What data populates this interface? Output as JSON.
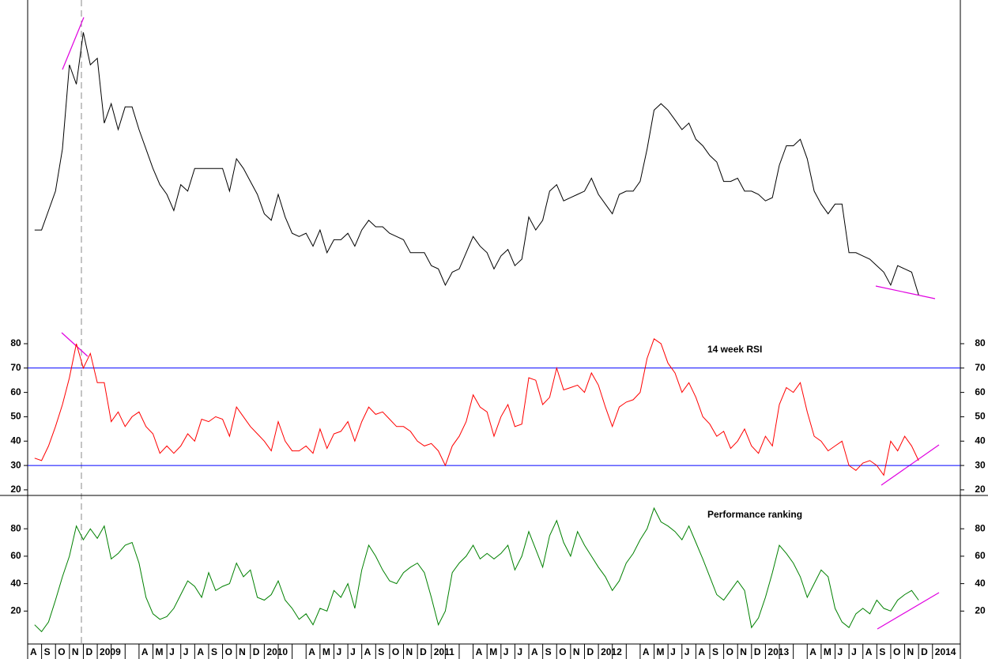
{
  "chart_data": [
    {
      "type": "line",
      "ylim": [
        0,
        100
      ],
      "series": [
        {
          "color": "#000000",
          "values": [
            29,
            29,
            35,
            41,
            54,
            80,
            74,
            90,
            80,
            82,
            62,
            68,
            60,
            67,
            67,
            60,
            54,
            48,
            43,
            40,
            35,
            43,
            41,
            48,
            48,
            48,
            48,
            48,
            41,
            51,
            48,
            44,
            40,
            34,
            32,
            40,
            33,
            28,
            27,
            28,
            24,
            29,
            22,
            26,
            26,
            28,
            24,
            29,
            32,
            30,
            30,
            28,
            27,
            26,
            22,
            22,
            22,
            18,
            17,
            12,
            16,
            17,
            22,
            27,
            24,
            22,
            17,
            21,
            23,
            18,
            20,
            33,
            29,
            32,
            41,
            43,
            38,
            39,
            40,
            41,
            45,
            40,
            37,
            34,
            40,
            41,
            41,
            44,
            54,
            66,
            68,
            66,
            63,
            60,
            62,
            57,
            55,
            52,
            50,
            44,
            44,
            45,
            41,
            41,
            40,
            38,
            39,
            49,
            55,
            55,
            57,
            51,
            41,
            37,
            34,
            37,
            37,
            22,
            22,
            21,
            20,
            18,
            16,
            12,
            18,
            17,
            16,
            9
          ]
        }
      ]
    },
    {
      "type": "line",
      "title": "14 week RSI",
      "title_color": "#ff0000",
      "ylim": [
        17.7,
        88.1
      ],
      "yticks": [
        20,
        30,
        40,
        50,
        60,
        70,
        80
      ],
      "hlines": [
        70,
        30
      ],
      "hline_color": "#0000ff",
      "series": [
        {
          "color": "#ff0000",
          "values": [
            33,
            32,
            38,
            46,
            55,
            66,
            80,
            70,
            76,
            64,
            64,
            48,
            52,
            46,
            50,
            52,
            46,
            43,
            35,
            38,
            35,
            38,
            43,
            40,
            49,
            48,
            50,
            49,
            42,
            54,
            50,
            46,
            43,
            40,
            36,
            48,
            40,
            36,
            36,
            38,
            35,
            45,
            37,
            43,
            44,
            48,
            40,
            48,
            54,
            51,
            52,
            49,
            46,
            46,
            44,
            40,
            38,
            39,
            36,
            30,
            38,
            42,
            48,
            59,
            54,
            52,
            42,
            50,
            55,
            46,
            47,
            66,
            65,
            55,
            58,
            70,
            61,
            62,
            63,
            60,
            68,
            63,
            54,
            46,
            54,
            56,
            57,
            60,
            74,
            82,
            80,
            72,
            68,
            60,
            64,
            58,
            50,
            47,
            42,
            44,
            37,
            40,
            45,
            38,
            35,
            42,
            38,
            55,
            62,
            60,
            64,
            52,
            42,
            40,
            36,
            38,
            40,
            30,
            28,
            31,
            32,
            30,
            26,
            40,
            36,
            42,
            38,
            32
          ]
        }
      ]
    },
    {
      "type": "line",
      "title": "Performance ranking",
      "title_color": "#008000",
      "ylim": [
        -4,
        104.3
      ],
      "yticks": [
        20,
        40,
        60,
        80
      ],
      "xlim": [
        -0.5,
        66.5
      ],
      "categories": [
        "A",
        "S",
        "O",
        "N",
        "D",
        "2009",
        null,
        null,
        "A",
        "M",
        "J",
        "J",
        "A",
        "S",
        "O",
        "N",
        "D",
        "2010",
        null,
        null,
        "A",
        "M",
        "J",
        "J",
        "A",
        "S",
        "O",
        "N",
        "D",
        "2011",
        null,
        null,
        "A",
        "M",
        "J",
        "J",
        "A",
        "S",
        "O",
        "N",
        "D",
        "2012",
        null,
        null,
        "A",
        "M",
        "J",
        "J",
        "A",
        "S",
        "O",
        "N",
        "D",
        "2013",
        null,
        null,
        "A",
        "M",
        "J",
        "J",
        "A",
        "S",
        "O",
        "N",
        "D",
        "2014"
      ],
      "x": [
        0,
        0.5,
        1,
        1.5,
        2,
        2.5,
        3,
        3.5,
        4,
        4.5,
        5,
        5.5,
        6,
        6.5,
        7,
        7.5,
        8,
        8.5,
        9,
        9.5,
        10,
        10.5,
        11,
        11.5,
        12,
        12.5,
        13,
        13.5,
        14,
        14.5,
        15,
        15.5,
        16,
        16.5,
        17,
        17.5,
        18,
        18.5,
        19,
        19.5,
        20,
        20.5,
        21,
        21.5,
        22,
        22.5,
        23,
        23.5,
        24,
        24.5,
        25,
        25.5,
        26,
        26.5,
        27,
        27.5,
        28,
        28.5,
        29,
        29.5,
        30,
        30.5,
        31,
        31.5,
        32,
        32.5,
        33,
        33.5,
        34,
        34.5,
        35,
        35.5,
        36,
        36.5,
        37,
        37.5,
        38,
        38.5,
        39,
        39.5,
        40,
        40.5,
        41,
        41.5,
        42,
        42.5,
        43,
        43.5,
        44,
        44.5,
        45,
        45.5,
        46,
        46.5,
        47,
        47.5,
        48,
        48.5,
        49,
        49.5,
        50,
        50.5,
        51,
        51.5,
        52,
        52.5,
        53,
        53.5,
        54,
        54.5,
        55,
        55.5,
        56,
        56.5,
        57,
        57.5,
        58,
        58.5,
        59,
        59.5,
        60,
        60.5,
        61,
        61.5,
        62,
        62.5,
        63,
        63.5
      ],
      "series": [
        {
          "color": "#008000",
          "values": [
            10,
            5,
            12,
            28,
            45,
            60,
            82,
            72,
            80,
            73,
            82,
            58,
            62,
            68,
            70,
            55,
            30,
            18,
            14,
            16,
            22,
            32,
            42,
            38,
            30,
            48,
            35,
            38,
            40,
            55,
            45,
            50,
            30,
            28,
            32,
            42,
            28,
            22,
            14,
            18,
            10,
            22,
            20,
            35,
            30,
            40,
            22,
            50,
            68,
            60,
            50,
            42,
            40,
            48,
            52,
            55,
            48,
            30,
            10,
            20,
            48,
            55,
            60,
            68,
            58,
            62,
            58,
            62,
            68,
            50,
            60,
            78,
            65,
            52,
            75,
            86,
            70,
            60,
            78,
            68,
            60,
            52,
            45,
            35,
            42,
            55,
            62,
            72,
            80,
            95,
            85,
            82,
            78,
            72,
            82,
            70,
            58,
            45,
            32,
            28,
            35,
            42,
            35,
            8,
            15,
            30,
            48,
            68,
            62,
            55,
            45,
            30,
            40,
            50,
            45,
            22,
            12,
            8,
            18,
            22,
            18,
            28,
            22,
            20,
            28,
            32,
            35,
            28
          ]
        }
      ]
    }
  ]
}
